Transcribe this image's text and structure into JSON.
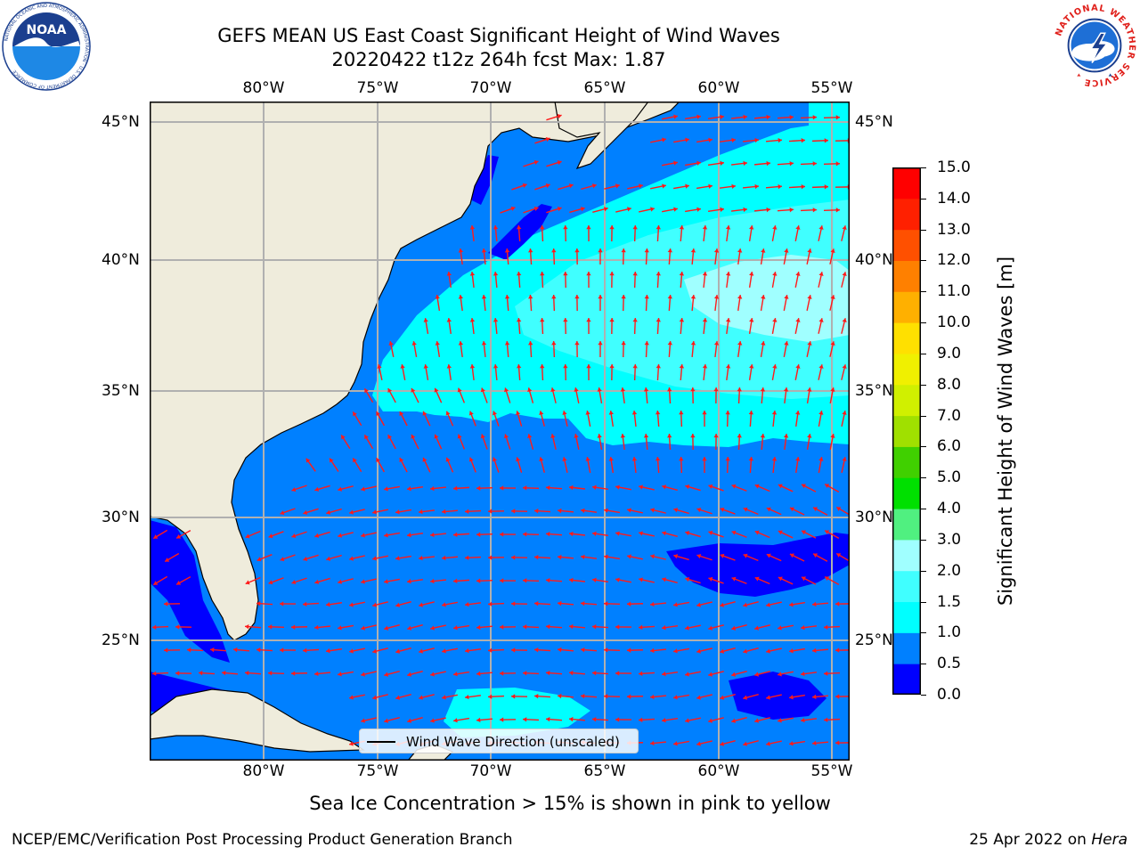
{
  "header": {
    "title_line1": "GEFS MEAN US East Coast Significant Height of Wind Waves",
    "title_line2": "20220422 t12z 264h fcst   Max: 1.87"
  },
  "logos": {
    "noaa_text": "NOAA",
    "noaa_ring_text": "NATIONAL OCEANIC AND ATMOSPHERIC ADMINISTRATION · U.S. DEPARTMENT OF COMMERCE",
    "nws_ring_text": "NATIONAL WEATHER SERVICE"
  },
  "map": {
    "lon_ticks": [
      "80°W",
      "75°W",
      "70°W",
      "65°W",
      "60°W",
      "55°W"
    ],
    "lat_ticks": [
      "45°N",
      "40°N",
      "35°N",
      "30°N",
      "25°N"
    ],
    "extent": {
      "lon_min": -85,
      "lon_max": -54.2,
      "lat_min": 20.2,
      "lat_max": 45.8
    },
    "land_color": "#efecdc",
    "arrow_color": "#ff1a1a",
    "gridline_color": "#b0b0b0"
  },
  "legend": {
    "label": "Wind Wave Direction (unscaled)"
  },
  "colorbar": {
    "label": "Significant Height of Wind Waves [m]",
    "ticks": [
      "0.0",
      "0.5",
      "1.0",
      "1.5",
      "2.0",
      "3.0",
      "4.0",
      "5.0",
      "6.0",
      "7.0",
      "8.0",
      "9.0",
      "10.0",
      "11.0",
      "12.0",
      "13.0",
      "14.0",
      "15.0"
    ],
    "colors": [
      "#0000ff",
      "#0080ff",
      "#00ffff",
      "#40ffff",
      "#a0ffff",
      "#50f080",
      "#00e000",
      "#40d000",
      "#a0e000",
      "#d0f000",
      "#f0f000",
      "#ffe000",
      "#ffb000",
      "#ff8000",
      "#ff5000",
      "#ff2000",
      "#ff0000"
    ]
  },
  "footer": {
    "ice_note": "Sea Ice Concentration > 15% is shown in pink to yellow",
    "credit": "NCEP/EMC/Verification Post Processing Product Generation Branch",
    "date": "25 Apr 2022 on",
    "host": "Hera"
  }
}
